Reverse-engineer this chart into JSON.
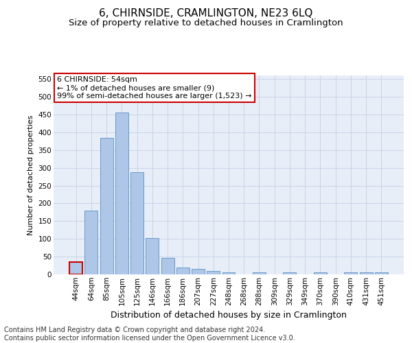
{
  "title": "6, CHIRNSIDE, CRAMLINGTON, NE23 6LQ",
  "subtitle": "Size of property relative to detached houses in Cramlington",
  "xlabel": "Distribution of detached houses by size in Cramlington",
  "ylabel": "Number of detached properties",
  "categories": [
    "44sqm",
    "64sqm",
    "85sqm",
    "105sqm",
    "125sqm",
    "146sqm",
    "166sqm",
    "186sqm",
    "207sqm",
    "227sqm",
    "248sqm",
    "268sqm",
    "288sqm",
    "309sqm",
    "329sqm",
    "349sqm",
    "370sqm",
    "390sqm",
    "410sqm",
    "431sqm",
    "451sqm"
  ],
  "values": [
    35,
    180,
    385,
    455,
    288,
    103,
    47,
    20,
    15,
    10,
    5,
    0,
    5,
    0,
    5,
    0,
    5,
    0,
    5,
    5,
    5
  ],
  "bar_color": "#aec6e8",
  "bar_edge_color": "#5a8fc2",
  "highlight_bar_index": 0,
  "highlight_bar_edge_color": "#cc0000",
  "annotation_box_text": "6 CHIRNSIDE: 54sqm\n← 1% of detached houses are smaller (9)\n99% of semi-detached houses are larger (1,523) →",
  "annotation_box_edgecolor": "#cc0000",
  "ylim": [
    0,
    560
  ],
  "yticks": [
    0,
    50,
    100,
    150,
    200,
    250,
    300,
    350,
    400,
    450,
    500,
    550
  ],
  "grid_color": "#c8d4e8",
  "background_color": "#e8eef8",
  "footer_text": "Contains HM Land Registry data © Crown copyright and database right 2024.\nContains public sector information licensed under the Open Government Licence v3.0.",
  "title_fontsize": 11,
  "subtitle_fontsize": 9.5,
  "xlabel_fontsize": 9,
  "ylabel_fontsize": 8,
  "tick_fontsize": 7.5,
  "footer_fontsize": 7,
  "annotation_fontsize": 8
}
